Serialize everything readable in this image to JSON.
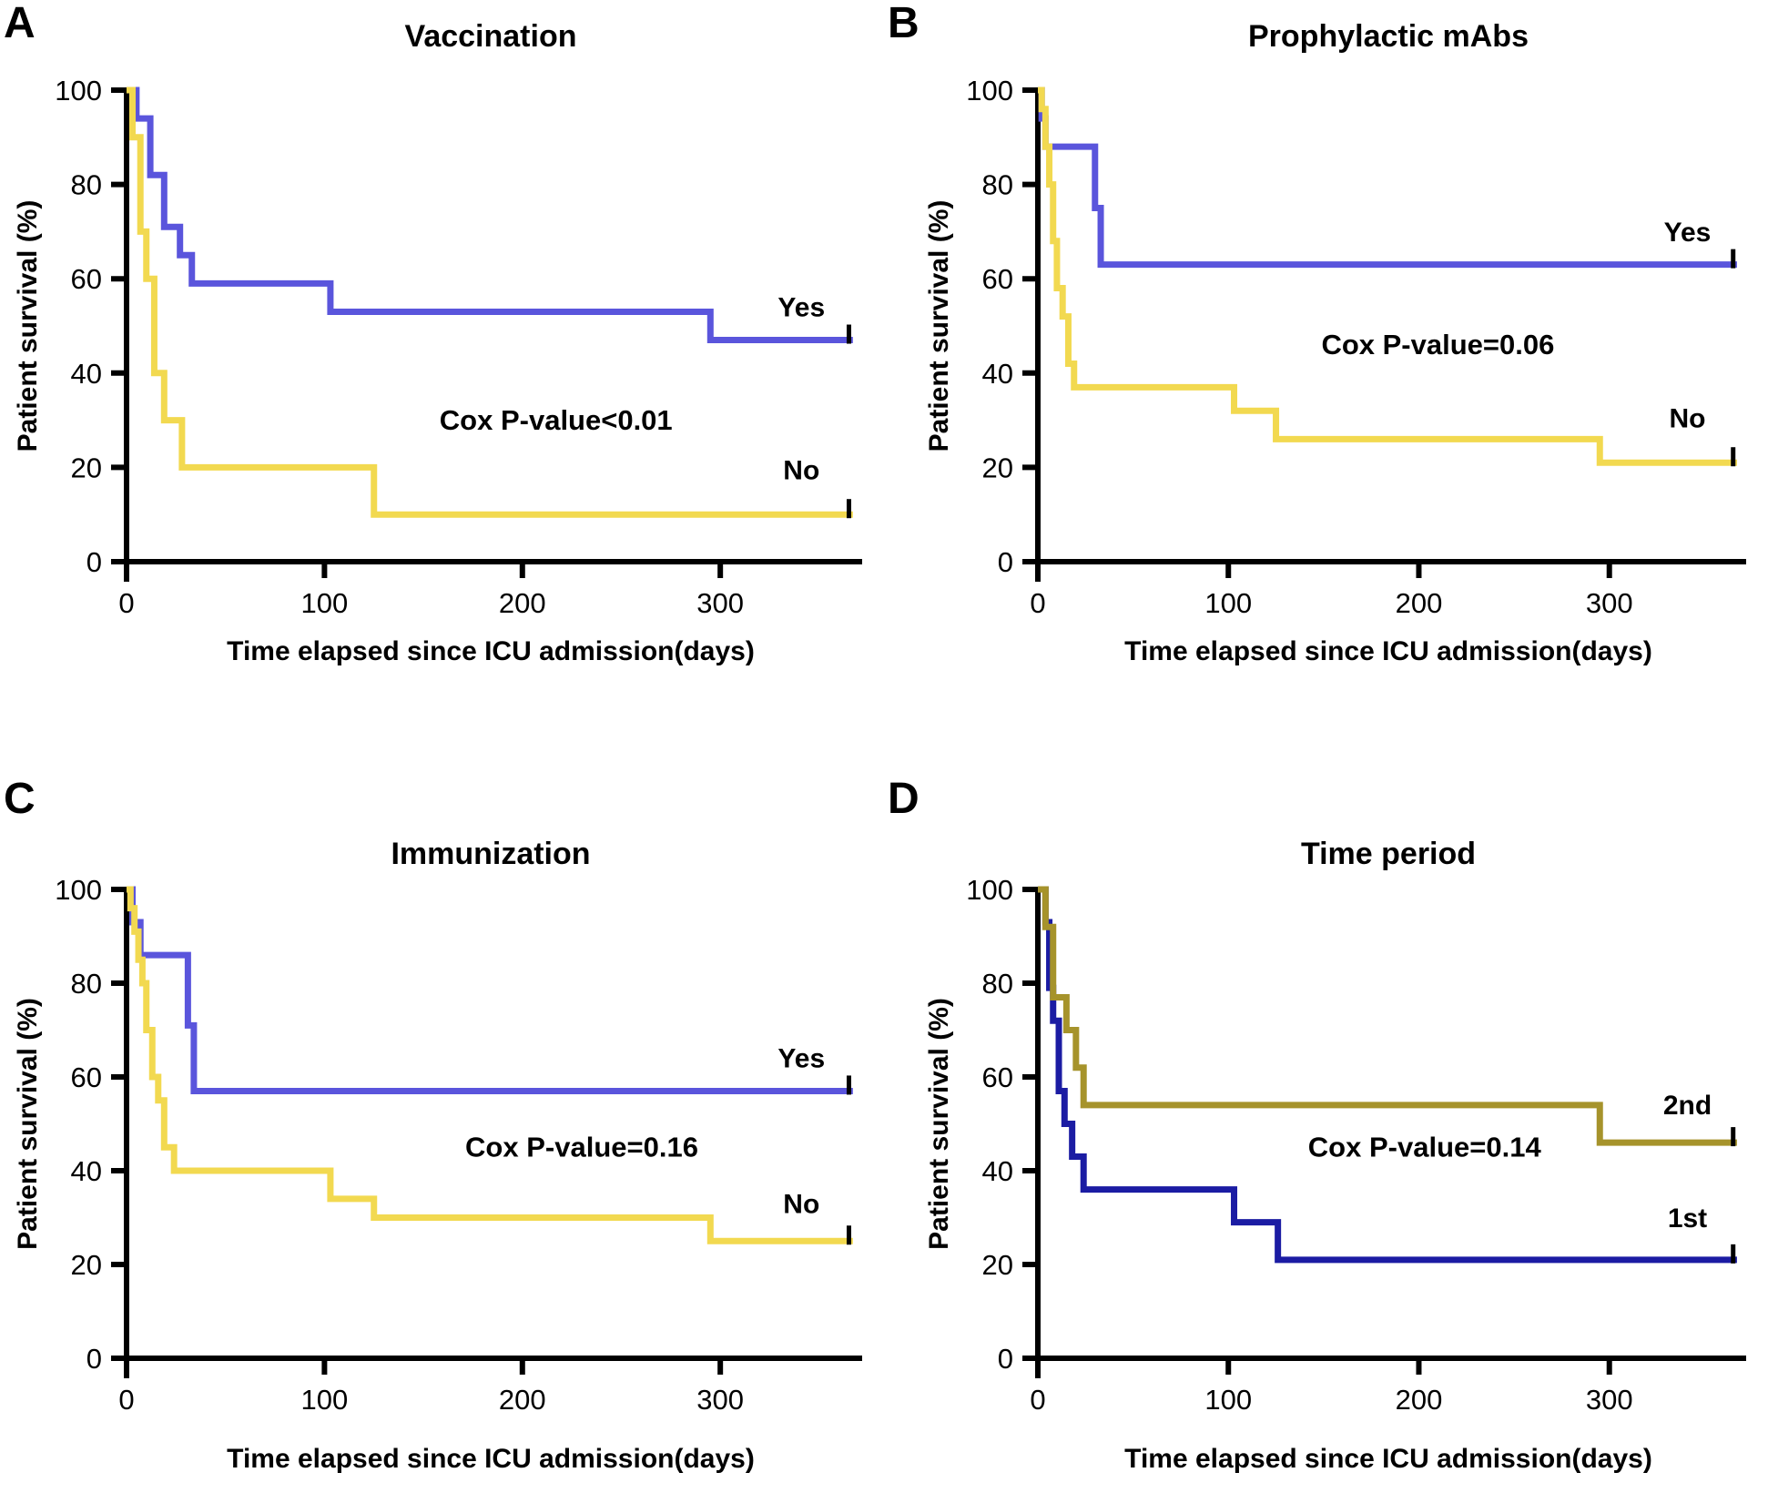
{
  "figure": {
    "background": "#ffffff",
    "xlabel": "Time elapsed since ICU admission(days)",
    "ylabel": "Patient survival (%)",
    "colors": {
      "yes_blue": "#5a55dc",
      "no_yellow": "#f2d950",
      "second_olive": "#a6932b",
      "first_navy": "#1b1ca3",
      "axis": "#000000"
    }
  },
  "chart_data": [
    {
      "panel_label": "A",
      "title": "Vaccination",
      "type": "line",
      "subtype": "kaplan-meier-step",
      "xlabel": "Time elapsed since ICU admission(days)",
      "ylabel": "Patient survival (%)",
      "xlim": [
        0,
        368
      ],
      "ylim": [
        0,
        100
      ],
      "xticks": [
        0,
        100,
        200,
        300
      ],
      "yticks": [
        0,
        20,
        40,
        60,
        80,
        100
      ],
      "annotation": {
        "text": "Cox P-value<0.01",
        "x": 217,
        "y": 28
      },
      "series": [
        {
          "name": "Yes",
          "color": "#5a55dc",
          "label": {
            "x": 341,
            "y": 52
          },
          "points": [
            [
              0,
              100
            ],
            [
              5,
              94
            ],
            [
              12,
              82
            ],
            [
              19,
              71
            ],
            [
              27,
              65
            ],
            [
              33,
              59
            ],
            [
              103,
              53
            ],
            [
              295,
              47
            ],
            [
              367,
              47
            ]
          ],
          "censor": {
            "x": 365,
            "y": 47
          }
        },
        {
          "name": "No",
          "color": "#f2d950",
          "label": {
            "x": 341,
            "y": 17.5
          },
          "points": [
            [
              0,
              100
            ],
            [
              3,
              90
            ],
            [
              7,
              70
            ],
            [
              10,
              60
            ],
            [
              14,
              40
            ],
            [
              19,
              30
            ],
            [
              28,
              20
            ],
            [
              125,
              10
            ],
            [
              367,
              10
            ]
          ],
          "censor": {
            "x": 365,
            "y": 10
          }
        }
      ]
    },
    {
      "panel_label": "B",
      "title": "Prophylactic mAbs",
      "type": "line",
      "subtype": "kaplan-meier-step",
      "xlabel": "Time elapsed since ICU admission(days)",
      "ylabel": "Patient survival (%)",
      "xlim": [
        0,
        368
      ],
      "ylim": [
        0,
        100
      ],
      "xticks": [
        0,
        100,
        200,
        300
      ],
      "yticks": [
        0,
        20,
        40,
        60,
        80,
        100
      ],
      "annotation": {
        "text": "Cox P-value=0.06",
        "x": 210,
        "y": 44
      },
      "series": [
        {
          "name": "Yes",
          "color": "#5a55dc",
          "label": {
            "x": 341,
            "y": 68
          },
          "points": [
            [
              0,
              100
            ],
            [
              2,
              94
            ],
            [
              4,
              88
            ],
            [
              30,
              75
            ],
            [
              33,
              63
            ],
            [
              367,
              63
            ]
          ],
          "censor": {
            "x": 365,
            "y": 63
          }
        },
        {
          "name": "No",
          "color": "#f2d950",
          "label": {
            "x": 341,
            "y": 28.5
          },
          "points": [
            [
              0,
              100
            ],
            [
              2,
              96
            ],
            [
              4,
              88
            ],
            [
              6,
              80
            ],
            [
              8,
              68
            ],
            [
              10,
              58
            ],
            [
              13,
              52
            ],
            [
              16,
              42
            ],
            [
              19,
              37
            ],
            [
              103,
              32
            ],
            [
              125,
              26
            ],
            [
              295,
              21
            ],
            [
              367,
              21
            ]
          ],
          "censor": {
            "x": 365,
            "y": 21
          }
        }
      ]
    },
    {
      "panel_label": "C",
      "title": "Immunization",
      "type": "line",
      "subtype": "kaplan-meier-step",
      "xlabel": "Time elapsed since ICU admission(days)",
      "ylabel": "Patient survival (%)",
      "xlim": [
        0,
        368
      ],
      "ylim": [
        0,
        100
      ],
      "xticks": [
        0,
        100,
        200,
        300
      ],
      "yticks": [
        0,
        20,
        40,
        60,
        80,
        100
      ],
      "annotation": {
        "text": "Cox P-value=0.16",
        "x": 230,
        "y": 43
      },
      "series": [
        {
          "name": "Yes",
          "color": "#5a55dc",
          "label": {
            "x": 341,
            "y": 62
          },
          "points": [
            [
              0,
              100
            ],
            [
              3,
              93
            ],
            [
              7,
              86
            ],
            [
              31,
              71
            ],
            [
              34,
              57
            ],
            [
              367,
              57
            ]
          ],
          "censor": {
            "x": 365,
            "y": 57
          }
        },
        {
          "name": "No",
          "color": "#f2d950",
          "label": {
            "x": 341,
            "y": 31
          },
          "points": [
            [
              0,
              100
            ],
            [
              2,
              96
            ],
            [
              4,
              91
            ],
            [
              6,
              85
            ],
            [
              8,
              80
            ],
            [
              10,
              70
            ],
            [
              13,
              60
            ],
            [
              16,
              55
            ],
            [
              19,
              45
            ],
            [
              24,
              40
            ],
            [
              103,
              34
            ],
            [
              125,
              30
            ],
            [
              295,
              25
            ],
            [
              367,
              25
            ]
          ],
          "censor": {
            "x": 365,
            "y": 25
          }
        }
      ]
    },
    {
      "panel_label": "D",
      "title": "Time period",
      "type": "line",
      "subtype": "kaplan-meier-step",
      "xlabel": "Time elapsed since ICU admission(days)",
      "ylabel": "Patient survival (%)",
      "xlim": [
        0,
        368
      ],
      "ylim": [
        0,
        100
      ],
      "xticks": [
        0,
        100,
        200,
        300
      ],
      "yticks": [
        0,
        20,
        40,
        60,
        80,
        100
      ],
      "annotation": {
        "text": "Cox P-value=0.14",
        "x": 203,
        "y": 43
      },
      "series": [
        {
          "name": "1st",
          "color": "#1b1ca3",
          "label": {
            "x": 341,
            "y": 28
          },
          "points": [
            [
              0,
              100
            ],
            [
              4,
              93
            ],
            [
              6,
              79
            ],
            [
              8,
              72
            ],
            [
              11,
              57
            ],
            [
              14,
              50
            ],
            [
              18,
              43
            ],
            [
              24,
              36
            ],
            [
              103,
              29
            ],
            [
              126,
              21
            ],
            [
              367,
              21
            ]
          ],
          "censor": {
            "x": 365,
            "y": 21
          }
        },
        {
          "name": "2nd",
          "color": "#a6932b",
          "label": {
            "x": 341,
            "y": 52
          },
          "points": [
            [
              0,
              100
            ],
            [
              4,
              92
            ],
            [
              8,
              77
            ],
            [
              15,
              70
            ],
            [
              20,
              62
            ],
            [
              24,
              54
            ],
            [
              295,
              46
            ],
            [
              367,
              46
            ]
          ],
          "censor": {
            "x": 365,
            "y": 46
          }
        }
      ]
    }
  ]
}
